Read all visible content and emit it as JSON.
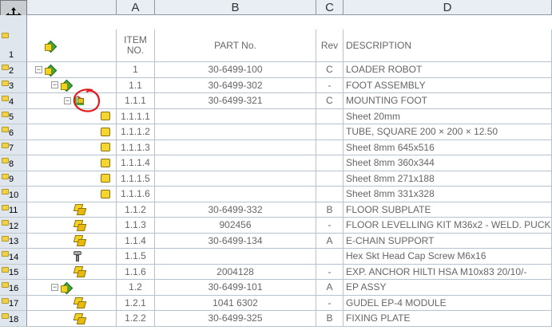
{
  "columns": {
    "a": "A",
    "b": "B",
    "c": "C",
    "d": "D"
  },
  "header": {
    "row_number": "1",
    "item_no_line1": "ITEM",
    "item_no_line2": "NO.",
    "part_no": "PART No.",
    "rev": "Rev",
    "description": "DESCRIPTION"
  },
  "rows": [
    {
      "num": "2",
      "indent": 0,
      "expander": "−",
      "icon": "assembly-icon",
      "item": "1",
      "part": "30-6499-100",
      "rev": "C",
      "desc": "LOADER ROBOT"
    },
    {
      "num": "3",
      "indent": 1,
      "expander": "−",
      "icon": "assembly-icon",
      "item": "1.1",
      "part": "30-6499-302",
      "rev": "-",
      "desc": "FOOT ASSEMBLY"
    },
    {
      "num": "4",
      "indent": 2,
      "expander": "−",
      "icon": "weldment-icon",
      "item": "1.1.1",
      "part": "30-6499-321",
      "rev": "C",
      "desc": "MOUNTING FOOT"
    },
    {
      "num": "5",
      "indent": 3,
      "expander": "",
      "icon": "sheet-icon",
      "item": "1.1.1.1",
      "part": "",
      "rev": "",
      "desc": "Sheet 20mm"
    },
    {
      "num": "6",
      "indent": 3,
      "expander": "",
      "icon": "sheet-icon",
      "item": "1.1.1.2",
      "part": "",
      "rev": "",
      "desc": "TUBE, SQUARE 200 × 200 × 12.50"
    },
    {
      "num": "7",
      "indent": 3,
      "expander": "",
      "icon": "sheet-icon",
      "item": "1.1.1.3",
      "part": "",
      "rev": "",
      "desc": "Sheet 8mm  645x516"
    },
    {
      "num": "8",
      "indent": 3,
      "expander": "",
      "icon": "sheet-icon",
      "item": "1.1.1.4",
      "part": "",
      "rev": "",
      "desc": "Sheet 8mm 360x344"
    },
    {
      "num": "9",
      "indent": 3,
      "expander": "",
      "icon": "sheet-icon",
      "item": "1.1.1.5",
      "part": "",
      "rev": "",
      "desc": "Sheet 8mm 271x188"
    },
    {
      "num": "10",
      "indent": 3,
      "expander": "",
      "icon": "sheet-icon",
      "item": "1.1.1.6",
      "part": "",
      "rev": "",
      "desc": "Sheet 8mm 331x328"
    },
    {
      "num": "11",
      "indent": 2,
      "expander": "",
      "icon": "part-icon",
      "item": "1.1.2",
      "part": "30-6499-332",
      "rev": "B",
      "desc": "FLOOR SUBPLATE"
    },
    {
      "num": "12",
      "indent": 2,
      "expander": "",
      "icon": "part-icon",
      "item": "1.1.3",
      "part": "902456",
      "rev": "-",
      "desc": "FLOOR LEVELLING KIT M36x2 - WELD. PUCK"
    },
    {
      "num": "13",
      "indent": 2,
      "expander": "",
      "icon": "part-icon",
      "item": "1.1.4",
      "part": "30-6499-134",
      "rev": "A",
      "desc": "E-CHAIN SUPPORT"
    },
    {
      "num": "14",
      "indent": 2,
      "expander": "",
      "icon": "screw-icon",
      "item": "1.1.5",
      "part": "",
      "rev": "",
      "desc": "Hex Skt Head Cap Screw M6x16"
    },
    {
      "num": "15",
      "indent": 2,
      "expander": "",
      "icon": "part-icon",
      "item": "1.1.6",
      "part": "2004128",
      "rev": "-",
      "desc": "EXP. ANCHOR HILTI HSA M10x83 20/10/-"
    },
    {
      "num": "16",
      "indent": 1,
      "expander": "−",
      "icon": "assembly-icon",
      "item": "1.2",
      "part": "30-6499-101",
      "rev": "A",
      "desc": "EP ASSY"
    },
    {
      "num": "17",
      "indent": 2,
      "expander": "",
      "icon": "part-icon",
      "item": "1.2.1",
      "part": "1041 6302",
      "rev": "-",
      "desc": "GUDEL EP-4 MODULE"
    },
    {
      "num": "18",
      "indent": 2,
      "expander": "",
      "icon": "part-icon",
      "item": "1.2.2",
      "part": "30-6499-325",
      "rev": "B",
      "desc": "FIXING PLATE"
    }
  ]
}
